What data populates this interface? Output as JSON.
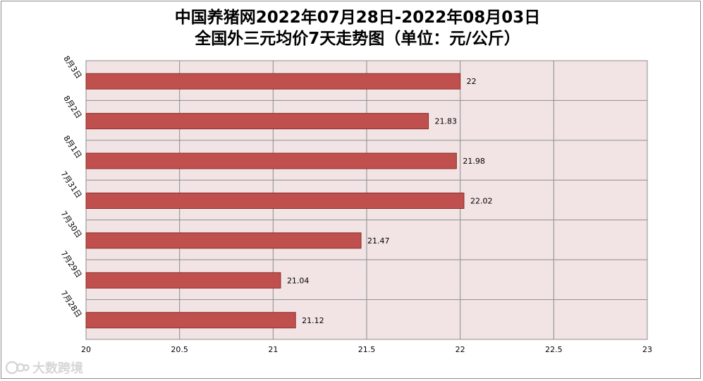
{
  "chart_data": {
    "type": "bar",
    "orientation": "horizontal",
    "title_lines": [
      "中国养猪网2022年07月28日-2022年08月03日",
      "全国外三元均价7天走势图（单位：元/公斤）"
    ],
    "categories": [
      "8月3日",
      "8月2日",
      "8月1日",
      "7月31日",
      "7月30日",
      "7月29日",
      "7月28日"
    ],
    "values": [
      22,
      21.83,
      21.98,
      22.02,
      21.47,
      21.04,
      21.12
    ],
    "value_labels": [
      "22",
      "21.83",
      "21.98",
      "22.02",
      "21.47",
      "21.04",
      "21.12"
    ],
    "xlim": [
      20,
      23
    ],
    "x_ticks": [
      "20",
      "20.5",
      "21",
      "21.5",
      "22",
      "22.5",
      "23"
    ],
    "x_tick_values": [
      20,
      20.5,
      21,
      21.5,
      22,
      22.5,
      23
    ],
    "grid": true,
    "legend": "none",
    "colors": {
      "bar_fill": "#c0504d",
      "bar_stroke": "#8c2d2b",
      "plot_bg": "#f2e4e4",
      "grid": "#8c8c8c"
    }
  },
  "watermark": {
    "text": "大数跨境",
    "icon": "brand-logo-icon"
  }
}
